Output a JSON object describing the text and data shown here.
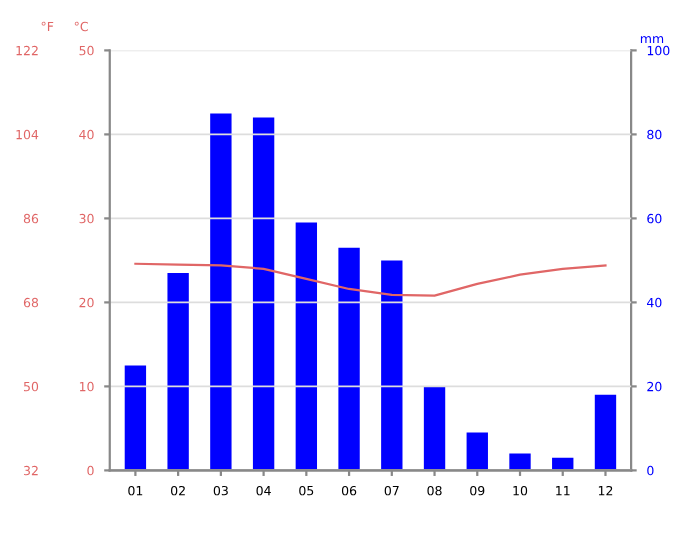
{
  "chart_data": {
    "type": "bar",
    "categories": [
      "01",
      "02",
      "03",
      "04",
      "05",
      "06",
      "07",
      "08",
      "09",
      "10",
      "11",
      "12"
    ],
    "ylabel": "°C",
    "y2label": "mm",
    "y3label": "°F",
    "series": [
      {
        "axis": "y2",
        "color": "#0000ff",
        "values": [
          25,
          47,
          85,
          84,
          59,
          53,
          50,
          20,
          9,
          4,
          3,
          18
        ]
      },
      {
        "type": "line",
        "axis": "y",
        "color": "#e06666",
        "values": [
          24.6,
          24.5,
          24.4,
          24.0,
          22.8,
          21.6,
          20.9,
          20.8,
          22.2,
          23.3,
          24.0,
          24.4
        ]
      }
    ],
    "ylim": [
      0,
      50
    ],
    "yticks": [
      0,
      10,
      20,
      30,
      40,
      50
    ],
    "y2lim": [
      0,
      100
    ],
    "y2ticks": [
      0,
      20,
      40,
      60,
      80,
      100
    ],
    "y3lim": [
      32,
      122
    ],
    "y3ticks": [
      32,
      50,
      68,
      86,
      104,
      122
    ],
    "grid": "y",
    "marker": "none",
    "line_style": "solid"
  }
}
